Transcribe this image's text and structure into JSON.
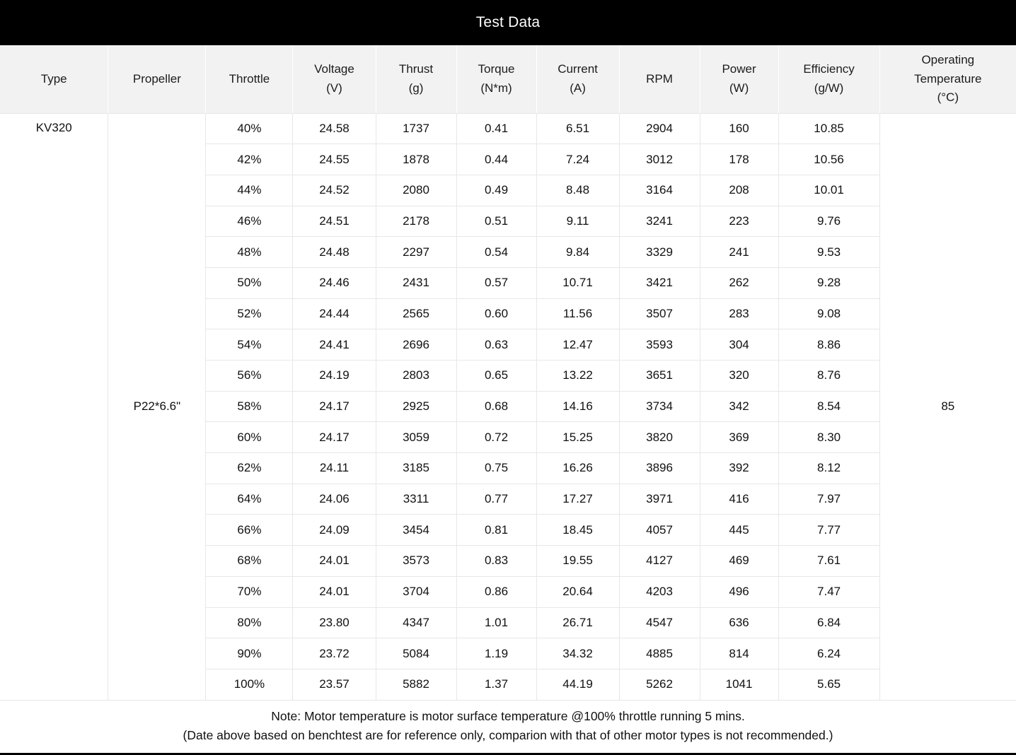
{
  "title": "Test Data",
  "table": {
    "columns": [
      "Type",
      "Propeller",
      "Throttle",
      "Voltage\n(V)",
      "Thrust\n(g)",
      "Torque\n(N*m)",
      "Current\n(A)",
      "RPM",
      "Power\n(W)",
      "Efficiency\n(g/W)",
      "Operating\nTemperature\n(°C)"
    ],
    "type": "KV320",
    "propeller": "P22*6.6\"",
    "operating_temperature": "85",
    "rows": [
      [
        "40%",
        "24.58",
        "1737",
        "0.41",
        "6.51",
        "2904",
        "160",
        "10.85"
      ],
      [
        "42%",
        "24.55",
        "1878",
        "0.44",
        "7.24",
        "3012",
        "178",
        "10.56"
      ],
      [
        "44%",
        "24.52",
        "2080",
        "0.49",
        "8.48",
        "3164",
        "208",
        "10.01"
      ],
      [
        "46%",
        "24.51",
        "2178",
        "0.51",
        "9.11",
        "3241",
        "223",
        "9.76"
      ],
      [
        "48%",
        "24.48",
        "2297",
        "0.54",
        "9.84",
        "3329",
        "241",
        "9.53"
      ],
      [
        "50%",
        "24.46",
        "2431",
        "0.57",
        "10.71",
        "3421",
        "262",
        "9.28"
      ],
      [
        "52%",
        "24.44",
        "2565",
        "0.60",
        "11.56",
        "3507",
        "283",
        "9.08"
      ],
      [
        "54%",
        "24.41",
        "2696",
        "0.63",
        "12.47",
        "3593",
        "304",
        "8.86"
      ],
      [
        "56%",
        "24.19",
        "2803",
        "0.65",
        "13.22",
        "3651",
        "320",
        "8.76"
      ],
      [
        "58%",
        "24.17",
        "2925",
        "0.68",
        "14.16",
        "3734",
        "342",
        "8.54"
      ],
      [
        "60%",
        "24.17",
        "3059",
        "0.72",
        "15.25",
        "3820",
        "369",
        "8.30"
      ],
      [
        "62%",
        "24.11",
        "3185",
        "0.75",
        "16.26",
        "3896",
        "392",
        "8.12"
      ],
      [
        "64%",
        "24.06",
        "3311",
        "0.77",
        "17.27",
        "3971",
        "416",
        "7.97"
      ],
      [
        "66%",
        "24.09",
        "3454",
        "0.81",
        "18.45",
        "4057",
        "445",
        "7.77"
      ],
      [
        "68%",
        "24.01",
        "3573",
        "0.83",
        "19.55",
        "4127",
        "469",
        "7.61"
      ],
      [
        "70%",
        "24.01",
        "3704",
        "0.86",
        "20.64",
        "4203",
        "496",
        "7.47"
      ],
      [
        "80%",
        "23.80",
        "4347",
        "1.01",
        "26.71",
        "4547",
        "636",
        "6.84"
      ],
      [
        "90%",
        "23.72",
        "5084",
        "1.19",
        "34.32",
        "4885",
        "814",
        "6.24"
      ],
      [
        "100%",
        "23.57",
        "5882",
        "1.37",
        "44.19",
        "5262",
        "1041",
        "5.65"
      ]
    ]
  },
  "note": {
    "line1": "Note: Motor temperature is motor surface temperature @100% throttle running 5 mins.",
    "line2": "(Date above based on benchtest are for reference only, comparion with that of other motor types is not recommended.)"
  },
  "colors": {
    "title_bar_bg": "#000000",
    "title_text": "#ffffff",
    "header_bg": "#f2f2f2",
    "grid_line": "#e7e7e7",
    "body_text": "#111111"
  }
}
